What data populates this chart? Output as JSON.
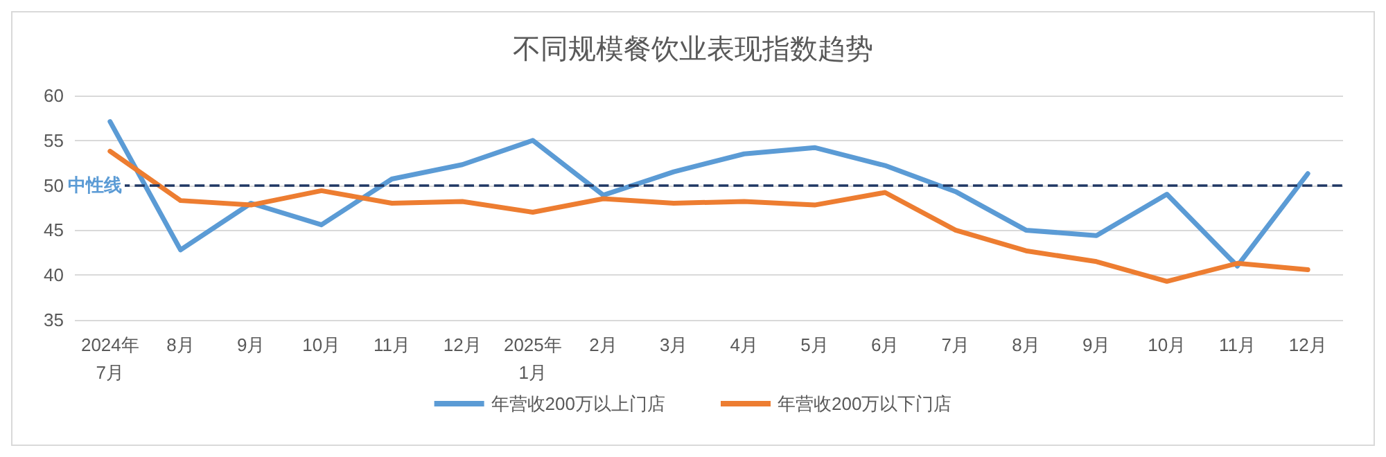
{
  "chart_data": {
    "type": "line",
    "title": "不同规模餐饮业表现指数趋势",
    "categories": [
      "2024年\n7月",
      "8月",
      "9月",
      "10月",
      "11月",
      "12月",
      "2025年\n1月",
      "2月",
      "3月",
      "4月",
      "5月",
      "6月",
      "7月",
      "8月",
      "9月",
      "10月",
      "11月",
      "12月"
    ],
    "series": [
      {
        "name": "年营收200万以上门店",
        "color": "#5b9bd5",
        "values": [
          57.1,
          42.8,
          48,
          45.6,
          50.7,
          52.3,
          55,
          48.9,
          51.5,
          53.5,
          54.2,
          52.2,
          49.3,
          45,
          44.4,
          49,
          41,
          51.3
        ]
      },
      {
        "name": "年营收200万以下门店",
        "color": "#ed7d31",
        "values": [
          53.8,
          48.3,
          47.8,
          49.4,
          48,
          48.2,
          47,
          48.5,
          48,
          48.2,
          47.8,
          49.2,
          45,
          42.7,
          41.5,
          39.3,
          41.3,
          40.6
        ]
      }
    ],
    "ylim": [
      35,
      60
    ],
    "yticks": [
      35,
      40,
      45,
      50,
      55,
      60
    ],
    "grid": "y",
    "legend": "bottom",
    "marker": "none",
    "line_style": "solid",
    "ref_lines": [
      {
        "axis": "y",
        "value": 50,
        "label": "中性线",
        "color": "#203864",
        "line_style": "dashed"
      }
    ]
  }
}
